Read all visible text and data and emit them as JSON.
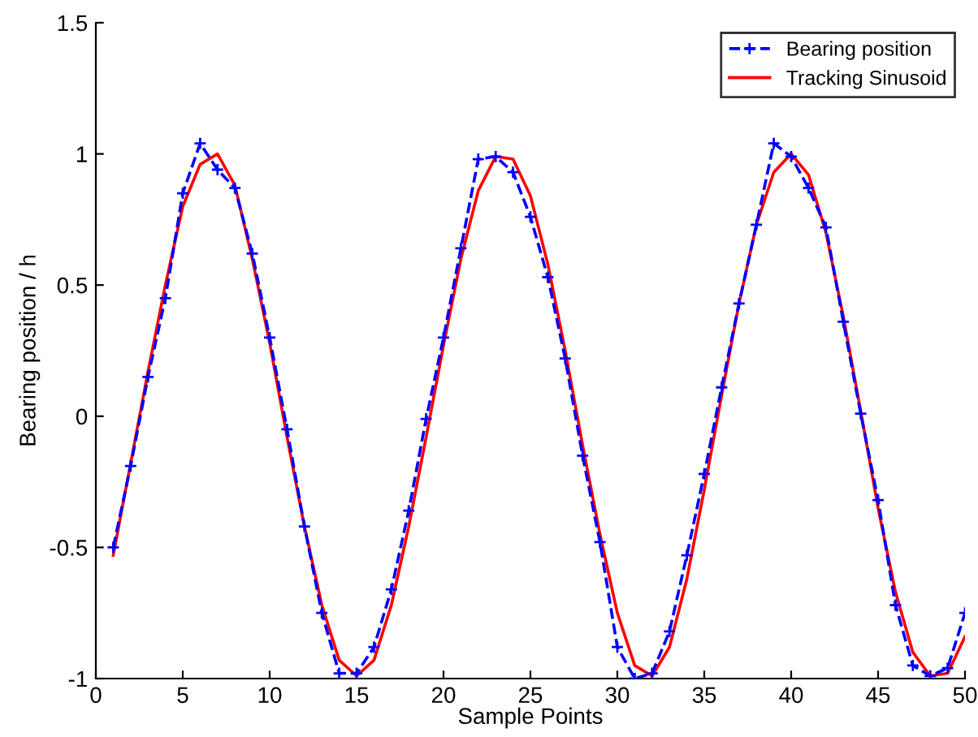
{
  "chart_data": {
    "type": "line",
    "xlabel": "Sample Points",
    "ylabel": "Bearing position / h",
    "x": [
      1,
      2,
      3,
      4,
      5,
      6,
      7,
      8,
      9,
      10,
      11,
      12,
      13,
      14,
      15,
      16,
      17,
      18,
      19,
      20,
      21,
      22,
      23,
      24,
      25,
      26,
      27,
      28,
      29,
      30,
      31,
      32,
      33,
      34,
      35,
      36,
      37,
      38,
      39,
      40,
      41,
      42,
      43,
      44,
      45,
      46,
      47,
      48,
      49,
      50
    ],
    "series": [
      {
        "name": "Bearing position",
        "color": "#0000ff",
        "marker": "cross",
        "line_style": "dashed",
        "values": [
          -0.5,
          -0.19,
          0.15,
          0.45,
          0.85,
          1.04,
          0.94,
          0.87,
          0.62,
          0.3,
          -0.05,
          -0.42,
          -0.75,
          -0.98,
          -0.98,
          -0.88,
          -0.66,
          -0.36,
          -0.01,
          0.3,
          0.64,
          0.98,
          0.99,
          0.93,
          0.76,
          0.53,
          0.22,
          -0.15,
          -0.48,
          -0.88,
          -1.0,
          -0.98,
          -0.82,
          -0.53,
          -0.22,
          0.11,
          0.43,
          0.73,
          1.04,
          0.99,
          0.87,
          0.72,
          0.36,
          0.01,
          -0.32,
          -0.72,
          -0.95,
          -0.99,
          -0.96,
          -0.75
        ]
      },
      {
        "name": "Tracking Sinusoid",
        "color": "#ff0000",
        "marker": "none",
        "line_style": "solid",
        "values": [
          -0.53,
          -0.18,
          0.17,
          0.5,
          0.8,
          0.96,
          1.0,
          0.88,
          0.6,
          0.28,
          -0.08,
          -0.42,
          -0.72,
          -0.93,
          -0.99,
          -0.93,
          -0.72,
          -0.42,
          -0.08,
          0.27,
          0.6,
          0.86,
          0.99,
          0.98,
          0.84,
          0.58,
          0.25,
          -0.11,
          -0.45,
          -0.75,
          -0.95,
          -0.99,
          -0.88,
          -0.62,
          -0.28,
          0.08,
          0.43,
          0.73,
          0.93,
          1.0,
          0.92,
          0.7,
          0.38,
          0.02,
          -0.35,
          -0.67,
          -0.9,
          -0.99,
          -0.98,
          -0.84
        ]
      }
    ],
    "xlim": [
      0,
      50
    ],
    "xticks": [
      0,
      5,
      10,
      15,
      20,
      25,
      30,
      35,
      40,
      45,
      50
    ],
    "ylim": [
      -1,
      1.5
    ],
    "yticks": [
      -1,
      -0.5,
      0,
      0.5,
      1,
      1.5
    ],
    "grid": false,
    "legend": "top right"
  }
}
